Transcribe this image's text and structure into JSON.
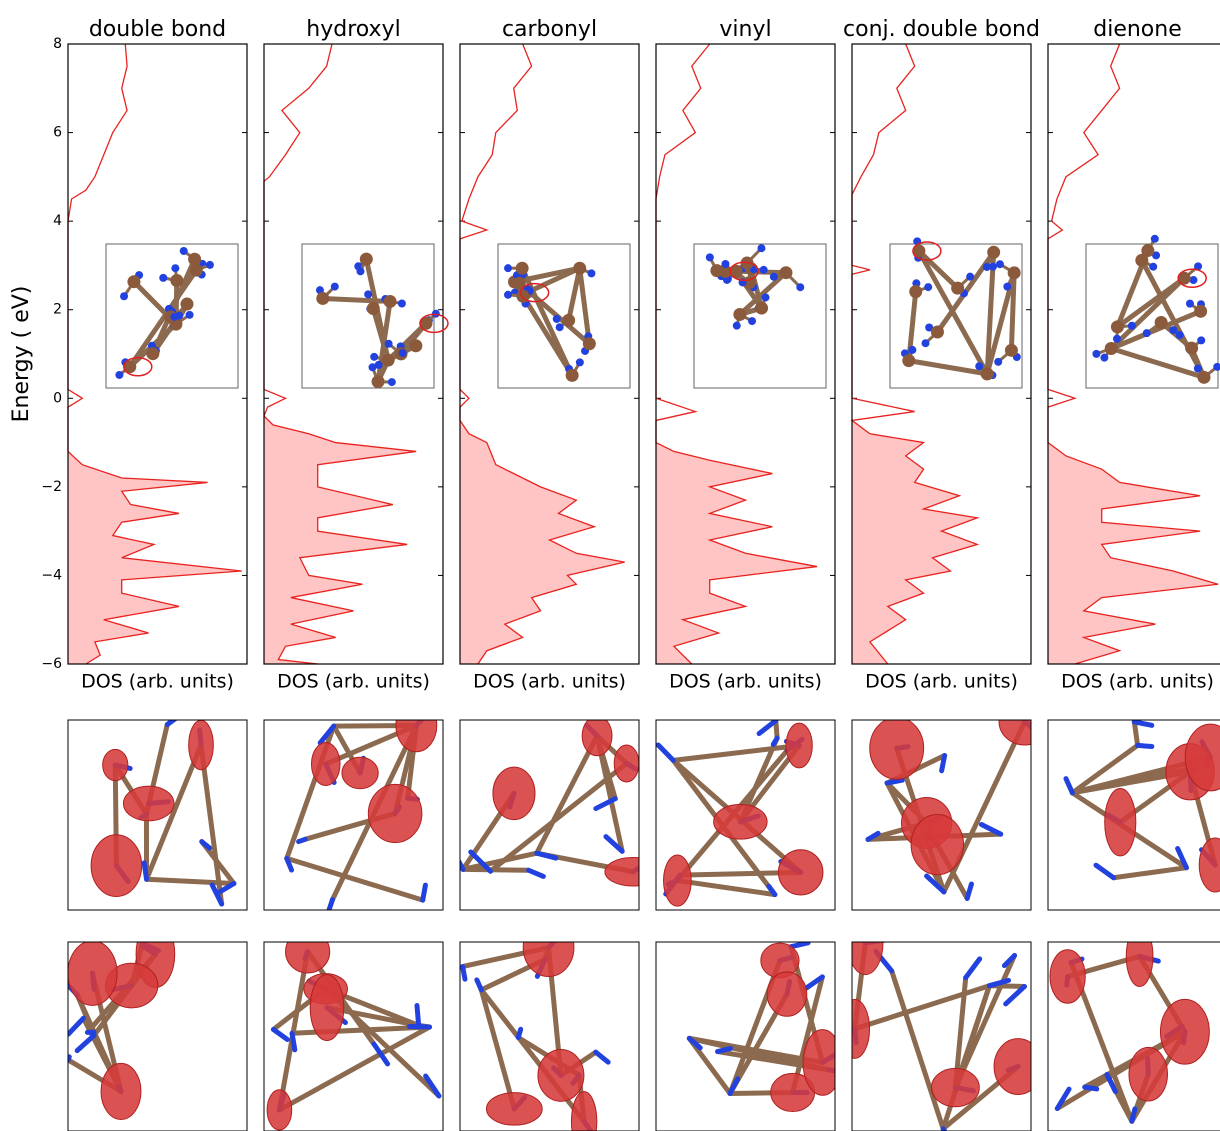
{
  "chart_data": [
    {
      "type": "line",
      "title": "double bond",
      "xlabel": "DOS (arb. units)",
      "ylabel": "Energy ( eV)",
      "color": "#e8231f",
      "fill_color": "#ffc4c4",
      "xlim": [
        0,
        1
      ],
      "ylim": [
        -6,
        8
      ],
      "yticks": [
        {
          "value": -6,
          "label": "−6"
        },
        {
          "value": -4,
          "label": "−4"
        },
        {
          "value": -2,
          "label": "−2"
        },
        0,
        2,
        4,
        6,
        8
      ],
      "energy": [
        -6,
        -5.8,
        -5.5,
        -5.3,
        -5.0,
        -4.7,
        -4.4,
        -4.1,
        -3.9,
        -3.6,
        -3.3,
        -3.1,
        -2.8,
        -2.6,
        -2.4,
        -2.1,
        -1.9,
        -1.8,
        -1.5,
        -1.2,
        -0.2,
        0,
        0.2,
        4,
        4.5,
        4.7,
        5,
        5.5,
        6,
        6.5,
        7,
        7.5,
        8
      ],
      "values": [
        0.1,
        0.18,
        0.15,
        0.45,
        0.2,
        0.62,
        0.3,
        0.3,
        0.97,
        0.3,
        0.48,
        0.25,
        0.3,
        0.62,
        0.35,
        0.3,
        0.78,
        0.3,
        0.08,
        0,
        0,
        0.08,
        0,
        0,
        0.02,
        0.1,
        0.15,
        0.2,
        0.25,
        0.33,
        0.3,
        0.33,
        0.32
      ]
    },
    {
      "type": "line",
      "title": "hydroxyl",
      "xlabel": "DOS (arb. units)",
      "color": "#e8231f",
      "fill_color": "#ffc4c4",
      "xlim": [
        0,
        1
      ],
      "ylim": [
        -6,
        8
      ],
      "energy": [
        -6,
        -5.9,
        -5.6,
        -5.4,
        -5.1,
        -4.8,
        -4.5,
        -4.2,
        -4.0,
        -3.6,
        -3.3,
        -3.0,
        -2.7,
        -2.4,
        -2.0,
        -1.5,
        -1.2,
        -1.0,
        -0.8,
        -0.6,
        -0.4,
        -0.2,
        0,
        0.2,
        4.9,
        5,
        5.5,
        6,
        6.5,
        7,
        7.5,
        8
      ],
      "values": [
        0.3,
        0.08,
        0.12,
        0.4,
        0.15,
        0.5,
        0.15,
        0.55,
        0.25,
        0.2,
        0.8,
        0.3,
        0.3,
        0.72,
        0.3,
        0.3,
        0.85,
        0.4,
        0.25,
        0.05,
        0,
        0.02,
        0.12,
        0,
        0,
        0.03,
        0.12,
        0.2,
        0.1,
        0.25,
        0.35,
        0.38
      ]
    },
    {
      "type": "line",
      "title": "carbonyl",
      "xlabel": "DOS (arb. units)",
      "color": "#e8231f",
      "fill_color": "#ffc4c4",
      "xlim": [
        0,
        1
      ],
      "ylim": [
        -6,
        8
      ],
      "energy": [
        -6,
        -5.7,
        -5.4,
        -5.1,
        -4.8,
        -4.5,
        -4.2,
        -4.0,
        -3.7,
        -3.5,
        -3.2,
        -2.9,
        -2.6,
        -2.3,
        -2.0,
        -1.5,
        -1.0,
        -0.8,
        -0.5,
        -0.2,
        0,
        0.2,
        3.6,
        3.8,
        4,
        4.5,
        5,
        5.5,
        6,
        6.5,
        7,
        7.5,
        8
      ],
      "values": [
        0.1,
        0.15,
        0.35,
        0.25,
        0.45,
        0.4,
        0.65,
        0.6,
        0.92,
        0.65,
        0.5,
        0.75,
        0.55,
        0.65,
        0.45,
        0.2,
        0.15,
        0.05,
        0,
        0,
        0.05,
        0,
        0,
        0.15,
        0.01,
        0.05,
        0.1,
        0.18,
        0.2,
        0.32,
        0.3,
        0.4,
        0.35
      ]
    },
    {
      "type": "line",
      "title": "vinyl",
      "xlabel": "DOS (arb. units)",
      "color": "#e8231f",
      "fill_color": "#ffc4c4",
      "xlim": [
        0,
        1
      ],
      "ylim": [
        -6,
        8
      ],
      "energy": [
        -6,
        -5.6,
        -5.3,
        -5.0,
        -4.7,
        -4.4,
        -4.1,
        -3.8,
        -3.5,
        -3.2,
        -2.9,
        -2.6,
        -2.3,
        -2.0,
        -1.7,
        -1.4,
        -1.2,
        -1.0,
        -0.5,
        -0.3,
        0,
        4.5,
        5,
        5.5,
        6,
        6.5,
        7,
        7.5,
        8
      ],
      "values": [
        0.2,
        0.1,
        0.35,
        0.15,
        0.5,
        0.3,
        0.3,
        0.9,
        0.5,
        0.3,
        0.65,
        0.3,
        0.5,
        0.3,
        0.65,
        0.3,
        0.1,
        0,
        0,
        0.22,
        0,
        0,
        0.02,
        0.05,
        0.22,
        0.15,
        0.25,
        0.2,
        0.3
      ]
    },
    {
      "type": "line",
      "title": "conj. double bond",
      "xlabel": "DOS (arb. units)",
      "color": "#e8231f",
      "fill_color": "#ffc4c4",
      "xlim": [
        0,
        1
      ],
      "ylim": [
        -6,
        8
      ],
      "energy": [
        -6,
        -5.5,
        -5.0,
        -4.7,
        -4.4,
        -4.1,
        -3.9,
        -3.6,
        -3.3,
        -3.0,
        -2.7,
        -2.5,
        -2.2,
        -1.9,
        -1.6,
        -1.3,
        -1.0,
        -0.8,
        -0.5,
        -0.3,
        0,
        2.8,
        2.9,
        3.0,
        4.6,
        5,
        5.5,
        6,
        6.5,
        7,
        7.5,
        8
      ],
      "values": [
        0.2,
        0.1,
        0.3,
        0.2,
        0.4,
        0.3,
        0.55,
        0.45,
        0.7,
        0.5,
        0.7,
        0.4,
        0.6,
        0.35,
        0.4,
        0.3,
        0.4,
        0.1,
        0,
        0.35,
        0,
        0,
        0.1,
        0,
        0,
        0.05,
        0.12,
        0.15,
        0.3,
        0.25,
        0.35,
        0.3
      ]
    },
    {
      "type": "line",
      "title": "dienone",
      "xlabel": "DOS (arb. units)",
      "color": "#e8231f",
      "fill_color": "#ffc4c4",
      "xlim": [
        0,
        1
      ],
      "ylim": [
        -6,
        8
      ],
      "energy": [
        -6,
        -5.7,
        -5.4,
        -5.1,
        -4.8,
        -4.5,
        -4.2,
        -3.9,
        -3.6,
        -3.3,
        -3.0,
        -2.8,
        -2.5,
        -2.2,
        -1.9,
        -1.6,
        -1.3,
        -1.0,
        -0.2,
        0,
        0.2,
        3.6,
        3.8,
        4,
        4.5,
        5,
        5.5,
        6,
        6.5,
        7,
        7.5,
        8
      ],
      "values": [
        0.15,
        0.4,
        0.2,
        0.6,
        0.2,
        0.3,
        0.95,
        0.7,
        0.35,
        0.3,
        0.85,
        0.3,
        0.3,
        0.85,
        0.4,
        0.3,
        0.1,
        0,
        0,
        0.15,
        0,
        0,
        0.08,
        0.02,
        0.05,
        0.1,
        0.28,
        0.2,
        0.3,
        0.4,
        0.35,
        0.4
      ]
    }
  ]
}
